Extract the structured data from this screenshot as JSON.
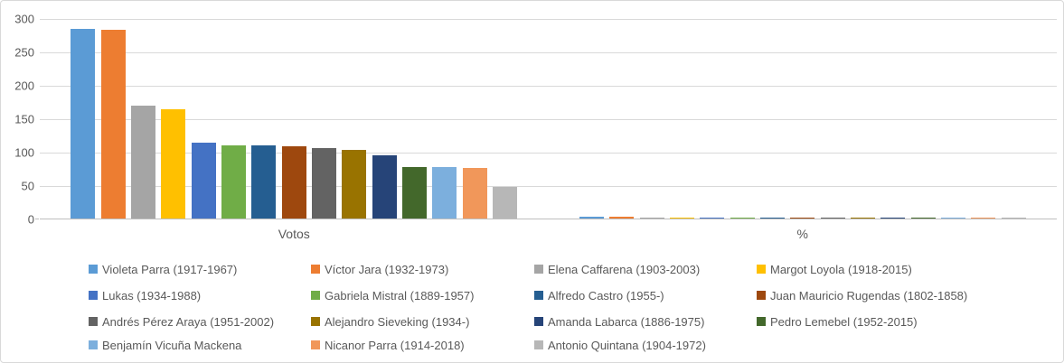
{
  "chart_data": {
    "type": "bar",
    "title": "",
    "categories": [
      "Votos",
      "%"
    ],
    "series": [
      {
        "name": "Violeta Parra (1917-1967)",
        "color": "#5B9BD5",
        "values": [
          284,
          2.8
        ]
      },
      {
        "name": "Víctor Jara (1932-1973)",
        "color": "#ED7D31",
        "values": [
          283,
          2.8
        ]
      },
      {
        "name": "Elena Caffarena (1903-2003)",
        "color": "#A5A5A5",
        "values": [
          169,
          1.7
        ]
      },
      {
        "name": "Margot Loyola (1918-2015)",
        "color": "#FFC000",
        "values": [
          164,
          1.6
        ]
      },
      {
        "name": "Lukas (1934-1988)",
        "color": "#4472C4",
        "values": [
          114,
          1.1
        ]
      },
      {
        "name": "Gabriela Mistral (1889-1957)",
        "color": "#70AD47",
        "values": [
          110,
          1.1
        ]
      },
      {
        "name": "Alfredo Castro (1955-)",
        "color": "#255E91",
        "values": [
          109,
          1.1
        ]
      },
      {
        "name": "Juan Mauricio Rugendas (1802-1858)",
        "color": "#9E480E",
        "values": [
          108,
          1.1
        ]
      },
      {
        "name": "Andrés Pérez Araya (1951-2002)",
        "color": "#636363",
        "values": [
          105,
          1.0
        ]
      },
      {
        "name": "Alejandro Sieveking (1934-)",
        "color": "#997300",
        "values": [
          103,
          1.0
        ]
      },
      {
        "name": "Amanda Labarca (1886-1975)",
        "color": "#264478",
        "values": [
          94,
          0.9
        ]
      },
      {
        "name": "Pedro Lemebel (1952-2015)",
        "color": "#43682B",
        "values": [
          77,
          0.8
        ]
      },
      {
        "name": "Benjamín Vicuña Mackena",
        "color": "#7CAFDD",
        "values": [
          77,
          0.8
        ]
      },
      {
        "name": "Nicanor Parra (1914-2018)",
        "color": "#F1975A",
        "values": [
          76,
          0.8
        ]
      },
      {
        "name": "Antonio Quintana (1904-1972)",
        "color": "#B7B7B7",
        "values": [
          47,
          0.5
        ]
      }
    ],
    "xlabel": "",
    "ylabel": "",
    "ylim": [
      0,
      300
    ],
    "y_ticks": [
      "0",
      "50",
      "100",
      "150",
      "200",
      "250",
      "300"
    ],
    "grid": true,
    "legend_position": "bottom",
    "legend_rows": [
      [
        0,
        1,
        2,
        3
      ],
      [
        4,
        5,
        6,
        7
      ],
      [
        8,
        9,
        10,
        11
      ],
      [
        12,
        13,
        14
      ]
    ]
  },
  "colors": {
    "background": "#FFFFFF",
    "border": "#D9D9D9",
    "gridline": "#D9D9D9",
    "axis_line": "#BFBFBF",
    "text": "#595959"
  }
}
